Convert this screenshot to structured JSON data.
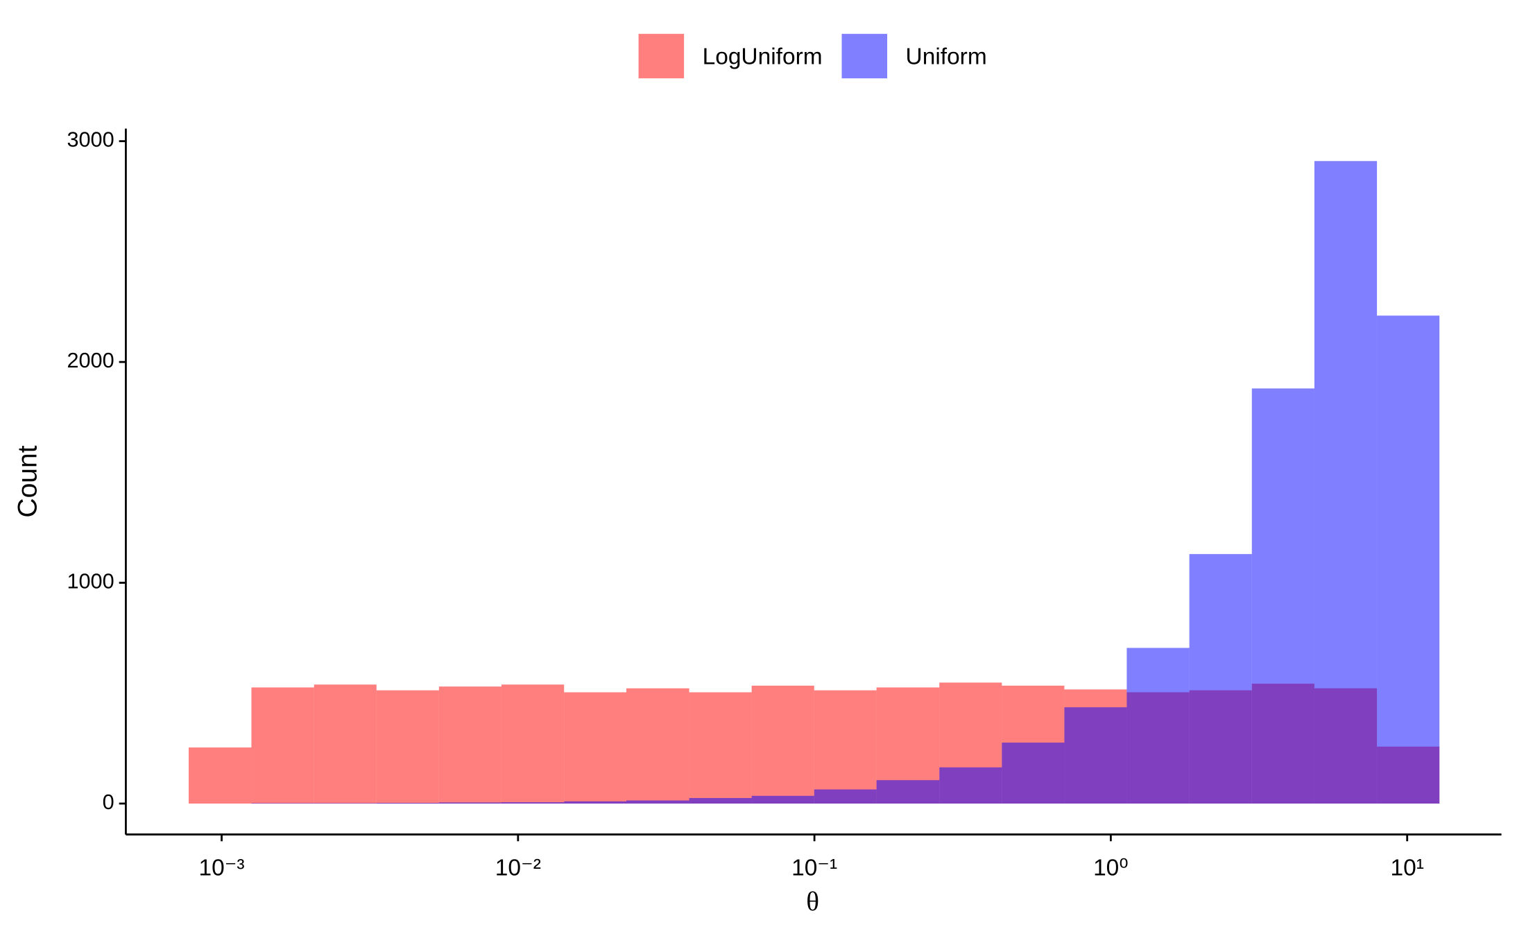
{
  "chart_data": {
    "type": "histogram",
    "xlabel": "θ",
    "ylabel": "Count",
    "xscale": "log",
    "bins": [
      0.000774,
      0.00126,
      0.00205,
      0.00333,
      0.00541,
      0.00879,
      0.0143,
      0.0232,
      0.0378,
      0.0614,
      0.0998,
      0.162,
      0.264,
      0.429,
      0.697,
      1.132,
      1.841,
      2.992,
      4.864,
      7.907,
      12.85
    ],
    "series": [
      {
        "name": "LogUniform",
        "color": "#FF0000",
        "values": [
          254,
          526,
          539,
          513,
          530,
          539,
          504,
          522,
          504,
          534,
          513,
          526,
          548,
          534,
          517,
          504,
          513,
          543,
          522,
          258
        ]
      },
      {
        "name": "Uniform",
        "color": "#0000FF",
        "values": [
          0,
          2,
          2,
          3,
          5,
          6,
          10,
          14,
          25,
          35,
          64,
          106,
          164,
          276,
          436,
          705,
          1130,
          1880,
          2910,
          2210
        ]
      }
    ],
    "opacity": 0.5,
    "xlim": [
      0.000475,
      20.8
    ],
    "xticks": [
      {
        "value": 0.001,
        "label": "10⁻³"
      },
      {
        "value": 0.01,
        "label": "10⁻²"
      },
      {
        "value": 0.1,
        "label": "10⁻¹"
      },
      {
        "value": 1,
        "label": "10⁰"
      },
      {
        "value": 10,
        "label": "10¹"
      }
    ],
    "ylim": [
      -140,
      3057
    ],
    "yticks": [
      0,
      1000,
      2000,
      3000
    ],
    "legend": "top"
  }
}
